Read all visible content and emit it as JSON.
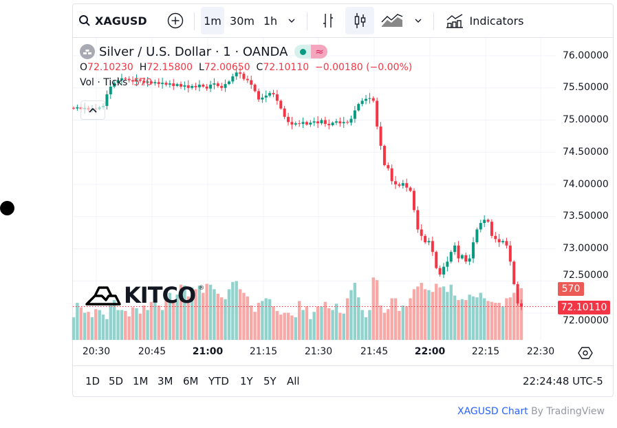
{
  "toolbar": {
    "symbol": "XAGUSD",
    "intervals": [
      "1m",
      "30m",
      "1h"
    ],
    "active_interval": "1m",
    "indicators_label": "Indicators"
  },
  "legend": {
    "title": "Silver / U.S. Dollar · 1 · OANDA",
    "open_label": "O",
    "open": "72.10230",
    "high_label": "H",
    "high": "72.15800",
    "low_label": "L",
    "low": "72.00650",
    "close_label": "C",
    "close": "72.10110",
    "change": "−0.00180 (−0.00%)",
    "vol_label": "Vol · Ticks",
    "vol_value": "570"
  },
  "watermark": "KITCO",
  "price_axis": [
    "76.00000",
    "75.50000",
    "75.00000",
    "74.50000",
    "74.00000",
    "73.50000",
    "73.00000",
    "72.50000",
    "72.00000"
  ],
  "last_volume_tag": "570",
  "last_price_tag": "72.10110",
  "time_axis": [
    {
      "label": "20:30",
      "bold": false
    },
    {
      "label": "20:45",
      "bold": false
    },
    {
      "label": "21:00",
      "bold": true
    },
    {
      "label": "21:15",
      "bold": false
    },
    {
      "label": "21:30",
      "bold": false
    },
    {
      "label": "21:45",
      "bold": false
    },
    {
      "label": "22:00",
      "bold": true
    },
    {
      "label": "22:15",
      "bold": false
    },
    {
      "label": "22:30",
      "bold": false
    }
  ],
  "ranges": [
    "1D",
    "5D",
    "1M",
    "3M",
    "6M",
    "YTD",
    "1Y",
    "5Y",
    "All"
  ],
  "clock": "22:24:48 UTC-5",
  "attribution": {
    "link": "XAGUSD Chart",
    "by": "By TradingView"
  },
  "colors": {
    "up": "#089981",
    "down": "#f23645",
    "up_vol": "#92d2cc",
    "down_vol": "#f7a9a7"
  },
  "chart_data": {
    "type": "candlestick",
    "title": "Silver / U.S. Dollar · 1 · OANDA",
    "interval_minutes": 1,
    "start_time": "20:24",
    "ylim": [
      71.6,
      76.2
    ],
    "closes": [
      75.18,
      75.2,
      75.17,
      75.19,
      75.16,
      75.18,
      75.17,
      75.2,
      75.22,
      75.4,
      75.52,
      75.58,
      75.62,
      75.65,
      75.64,
      75.62,
      75.6,
      75.63,
      75.61,
      75.58,
      75.6,
      75.57,
      75.59,
      75.56,
      75.58,
      75.55,
      75.57,
      75.53,
      75.56,
      75.52,
      75.54,
      75.5,
      75.53,
      75.51,
      75.55,
      75.52,
      75.49,
      75.55,
      75.57,
      75.53,
      75.5,
      75.56,
      75.6,
      75.68,
      75.74,
      75.72,
      75.64,
      75.62,
      75.55,
      75.45,
      75.32,
      75.35,
      75.38,
      75.42,
      75.4,
      75.3,
      75.18,
      75.05,
      74.97,
      74.93,
      74.95,
      74.94,
      74.97,
      74.93,
      74.96,
      74.98,
      74.95,
      75.0,
      74.94,
      74.92,
      74.96,
      74.98,
      74.95,
      74.97,
      74.96,
      75.02,
      75.15,
      75.25,
      75.3,
      75.33,
      75.34,
      75.3,
      74.9,
      74.6,
      74.3,
      74.25,
      74.05,
      74.0,
      73.98,
      74.02,
      73.95,
      73.9,
      73.6,
      73.3,
      73.2,
      73.1,
      73.12,
      72.95,
      72.7,
      72.6,
      72.72,
      72.8,
      72.95,
      73.05,
      72.85,
      72.9,
      72.8,
      72.85,
      73.1,
      73.3,
      73.4,
      73.45,
      73.42,
      73.2,
      73.15,
      73.1,
      73.12,
      73.05,
      72.8,
      72.45,
      72.15,
      72.1
    ],
    "volumes": [
      250,
      410,
      360,
      300,
      310,
      250,
      340,
      330,
      280,
      230,
      380,
      440,
      330,
      330,
      320,
      260,
      360,
      350,
      290,
      380,
      330,
      420,
      460,
      380,
      330,
      470,
      520,
      440,
      500,
      610,
      600,
      480,
      580,
      560,
      600,
      520,
      620,
      610,
      560,
      510,
      470,
      450,
      560,
      640,
      650,
      560,
      520,
      480,
      380,
      310,
      410,
      430,
      460,
      450,
      370,
      320,
      280,
      300,
      300,
      270,
      250,
      430,
      330,
      370,
      230,
      310,
      370,
      370,
      420,
      350,
      330,
      400,
      300,
      290,
      460,
      550,
      630,
      470,
      330,
      250,
      330,
      690,
      660,
      380,
      300,
      340,
      460,
      460,
      320,
      380,
      370,
      460,
      560,
      590,
      630,
      560,
      550,
      530,
      620,
      580,
      590,
      530,
      610,
      490,
      440,
      450,
      440,
      500,
      480,
      470,
      520,
      460,
      430,
      420,
      410,
      410,
      370,
      460,
      470,
      520,
      560,
      570
    ]
  }
}
